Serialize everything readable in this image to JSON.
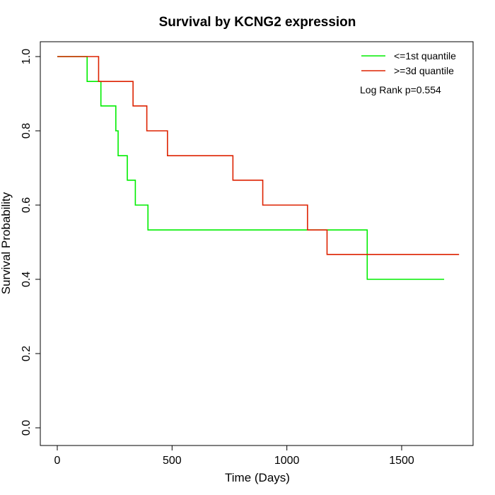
{
  "chart_data": {
    "type": "line",
    "title": "Survival by KCNG2 expression",
    "xlabel": "Time (Days)",
    "ylabel": "Survival Probability",
    "xlim": [
      0,
      1750
    ],
    "ylim": [
      0,
      1.0
    ],
    "x_ticks": [
      "0",
      "500",
      "1000",
      "1500"
    ],
    "x_tick_values": [
      0,
      500,
      1000,
      1500
    ],
    "y_ticks": [
      "0.0",
      "0.2",
      "0.4",
      "0.6",
      "0.8",
      "1.0"
    ],
    "y_tick_values": [
      0,
      0.2,
      0.4,
      0.6,
      0.8,
      1.0
    ],
    "grid": false,
    "legend_position": "top-right",
    "annotation": "Log Rank p=0.554",
    "series": [
      {
        "name": "<=1st quantile",
        "color": "#00ee00",
        "step_x": [
          0,
          130,
          190,
          255,
          265,
          305,
          340,
          395,
          1350,
          1685
        ],
        "step_y": [
          1.0,
          0.933,
          0.867,
          0.8,
          0.733,
          0.667,
          0.6,
          0.533,
          0.4,
          0.4
        ]
      },
      {
        "name": ">=3d quantile",
        "color": "#dd2200",
        "step_x": [
          0,
          180,
          330,
          390,
          480,
          765,
          895,
          1090,
          1175,
          1750
        ],
        "step_y": [
          1.0,
          0.933,
          0.867,
          0.8,
          0.733,
          0.667,
          0.6,
          0.533,
          0.467,
          0.467
        ]
      }
    ]
  }
}
